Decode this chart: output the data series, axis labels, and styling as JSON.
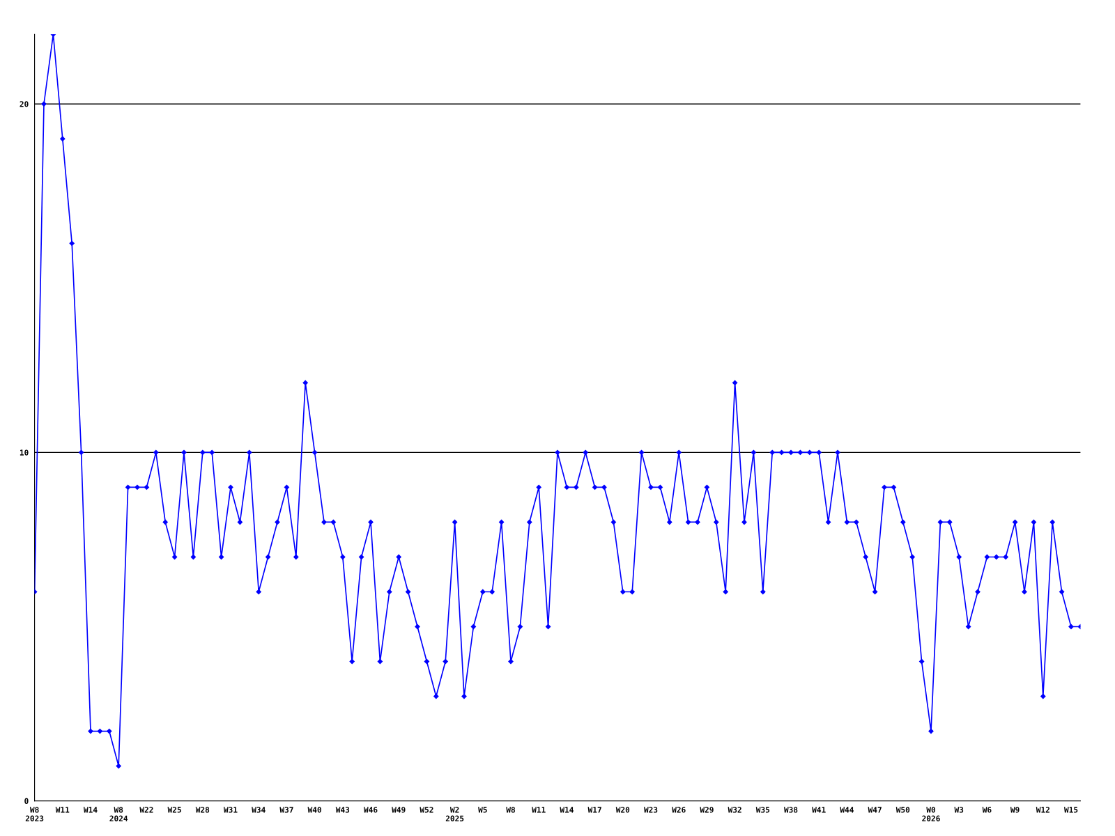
{
  "chart_data": {
    "type": "line",
    "categories": [
      "W8\n2023",
      null,
      null,
      "W11",
      null,
      null,
      "W14",
      null,
      null,
      "W8\n2024",
      null,
      null,
      "W22",
      null,
      null,
      "W25",
      null,
      null,
      "W28",
      null,
      null,
      "W31",
      null,
      null,
      "W34",
      null,
      null,
      "W37",
      null,
      null,
      "W40",
      null,
      null,
      "W43",
      null,
      null,
      "W46",
      null,
      null,
      "W49",
      null,
      null,
      "W52",
      null,
      null,
      "W2\n2025",
      null,
      null,
      "W5",
      null,
      null,
      "W8",
      null,
      null,
      "W11",
      null,
      null,
      "W14",
      null,
      null,
      "W17",
      null,
      null,
      "W20",
      null,
      null,
      "W23",
      null,
      null,
      "W26",
      null,
      null,
      "W29",
      null,
      null,
      "W32",
      null,
      null,
      "W35",
      null,
      null,
      "W38",
      null,
      null,
      "W41",
      null,
      null,
      "W44",
      null,
      null,
      "W47",
      null,
      null,
      "W50",
      null,
      null,
      "W0\n2026",
      null,
      null,
      "W3",
      null,
      null,
      "W6",
      null,
      null,
      "W9",
      null,
      null,
      "W12",
      null,
      null,
      "W15",
      null
    ],
    "series": [
      {
        "color": "#0000ff",
        "values": [
          6,
          20,
          22,
          19,
          16,
          10,
          2,
          2,
          2,
          1,
          9,
          9,
          9,
          10,
          8,
          7,
          10,
          7,
          10,
          10,
          7,
          9,
          8,
          10,
          6,
          7,
          8,
          9,
          7,
          12,
          10,
          8,
          8,
          7,
          4,
          7,
          8,
          4,
          6,
          7,
          6,
          5,
          4,
          3,
          4,
          8,
          3,
          5,
          6,
          6,
          8,
          4,
          5,
          8,
          9,
          5,
          10,
          9,
          9,
          10,
          9,
          9,
          8,
          6,
          6,
          10,
          9,
          9,
          8,
          10,
          8,
          8,
          9,
          8,
          6,
          12,
          8,
          10,
          6,
          10,
          10,
          10,
          10,
          10,
          10,
          8,
          10,
          8,
          8,
          7,
          6,
          9,
          9,
          8,
          7,
          4,
          2,
          8,
          8,
          7,
          5,
          6,
          7,
          7,
          7,
          8,
          6,
          8,
          3,
          8,
          6,
          5,
          5
        ]
      }
    ],
    "ylim": [
      0,
      22
    ],
    "yticks": [
      0,
      10,
      20
    ],
    "grid": "y",
    "marker": "diamond",
    "line_style": "solid"
  }
}
